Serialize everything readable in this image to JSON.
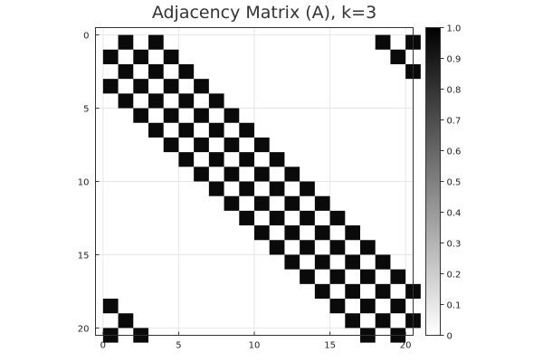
{
  "chart_data": {
    "type": "heatmap",
    "title": "Adjacency Matrix (A), k=3",
    "xlabel": "",
    "ylabel": "",
    "n": 21,
    "xlim": [
      0,
      21
    ],
    "ylim": [
      0,
      21
    ],
    "x_ticks": [
      0,
      5,
      10,
      15,
      20
    ],
    "y_ticks": [
      0,
      5,
      10,
      15,
      20
    ],
    "y_axis_inverted": true,
    "colorbar": {
      "ticks": [
        "0",
        "0.1",
        "0.2",
        "0.3",
        "0.4",
        "0.5",
        "0.6",
        "0.7",
        "0.8",
        "0.9",
        "1.0"
      ],
      "range": [
        0,
        1
      ],
      "colors": [
        "#ffffff",
        "#000000"
      ]
    },
    "cell_color": "#0a0a0a",
    "matrix_rule": "cell (i,j) = 1 when |i-j| (cyclic, n=21) is 1 or 3",
    "matrix": [
      [
        0,
        1,
        0,
        1,
        0,
        0,
        0,
        0,
        0,
        0,
        0,
        0,
        0,
        0,
        0,
        0,
        0,
        0,
        1,
        0,
        1
      ],
      [
        1,
        0,
        1,
        0,
        1,
        0,
        0,
        0,
        0,
        0,
        0,
        0,
        0,
        0,
        0,
        0,
        0,
        0,
        0,
        1,
        0
      ],
      [
        0,
        1,
        0,
        1,
        0,
        1,
        0,
        0,
        0,
        0,
        0,
        0,
        0,
        0,
        0,
        0,
        0,
        0,
        0,
        0,
        1
      ],
      [
        1,
        0,
        1,
        0,
        1,
        0,
        1,
        0,
        0,
        0,
        0,
        0,
        0,
        0,
        0,
        0,
        0,
        0,
        0,
        0,
        0
      ],
      [
        0,
        1,
        0,
        1,
        0,
        1,
        0,
        1,
        0,
        0,
        0,
        0,
        0,
        0,
        0,
        0,
        0,
        0,
        0,
        0,
        0
      ],
      [
        0,
        0,
        1,
        0,
        1,
        0,
        1,
        0,
        1,
        0,
        0,
        0,
        0,
        0,
        0,
        0,
        0,
        0,
        0,
        0,
        0
      ],
      [
        0,
        0,
        0,
        1,
        0,
        1,
        0,
        1,
        0,
        1,
        0,
        0,
        0,
        0,
        0,
        0,
        0,
        0,
        0,
        0,
        0
      ],
      [
        0,
        0,
        0,
        0,
        1,
        0,
        1,
        0,
        1,
        0,
        1,
        0,
        0,
        0,
        0,
        0,
        0,
        0,
        0,
        0,
        0
      ],
      [
        0,
        0,
        0,
        0,
        0,
        1,
        0,
        1,
        0,
        1,
        0,
        1,
        0,
        0,
        0,
        0,
        0,
        0,
        0,
        0,
        0
      ],
      [
        0,
        0,
        0,
        0,
        0,
        0,
        1,
        0,
        1,
        0,
        1,
        0,
        1,
        0,
        0,
        0,
        0,
        0,
        0,
        0,
        0
      ],
      [
        0,
        0,
        0,
        0,
        0,
        0,
        0,
        1,
        0,
        1,
        0,
        1,
        0,
        1,
        0,
        0,
        0,
        0,
        0,
        0,
        0
      ],
      [
        0,
        0,
        0,
        0,
        0,
        0,
        0,
        0,
        1,
        0,
        1,
        0,
        1,
        0,
        1,
        0,
        0,
        0,
        0,
        0,
        0
      ],
      [
        0,
        0,
        0,
        0,
        0,
        0,
        0,
        0,
        0,
        1,
        0,
        1,
        0,
        1,
        0,
        1,
        0,
        0,
        0,
        0,
        0
      ],
      [
        0,
        0,
        0,
        0,
        0,
        0,
        0,
        0,
        0,
        0,
        1,
        0,
        1,
        0,
        1,
        0,
        1,
        0,
        0,
        0,
        0
      ],
      [
        0,
        0,
        0,
        0,
        0,
        0,
        0,
        0,
        0,
        0,
        0,
        1,
        0,
        1,
        0,
        1,
        0,
        1,
        0,
        0,
        0
      ],
      [
        0,
        0,
        0,
        0,
        0,
        0,
        0,
        0,
        0,
        0,
        0,
        0,
        1,
        0,
        1,
        0,
        1,
        0,
        1,
        0,
        0
      ],
      [
        0,
        0,
        0,
        0,
        0,
        0,
        0,
        0,
        0,
        0,
        0,
        0,
        0,
        1,
        0,
        1,
        0,
        1,
        0,
        1,
        0
      ],
      [
        0,
        0,
        0,
        0,
        0,
        0,
        0,
        0,
        0,
        0,
        0,
        0,
        0,
        0,
        1,
        0,
        1,
        0,
        1,
        0,
        1
      ],
      [
        1,
        0,
        0,
        0,
        0,
        0,
        0,
        0,
        0,
        0,
        0,
        0,
        0,
        0,
        0,
        1,
        0,
        1,
        0,
        1,
        0
      ],
      [
        0,
        1,
        0,
        0,
        0,
        0,
        0,
        0,
        0,
        0,
        0,
        0,
        0,
        0,
        0,
        0,
        1,
        0,
        1,
        0,
        1
      ],
      [
        1,
        0,
        1,
        0,
        0,
        0,
        0,
        0,
        0,
        0,
        0,
        0,
        0,
        0,
        0,
        0,
        0,
        1,
        0,
        1,
        0
      ]
    ]
  }
}
